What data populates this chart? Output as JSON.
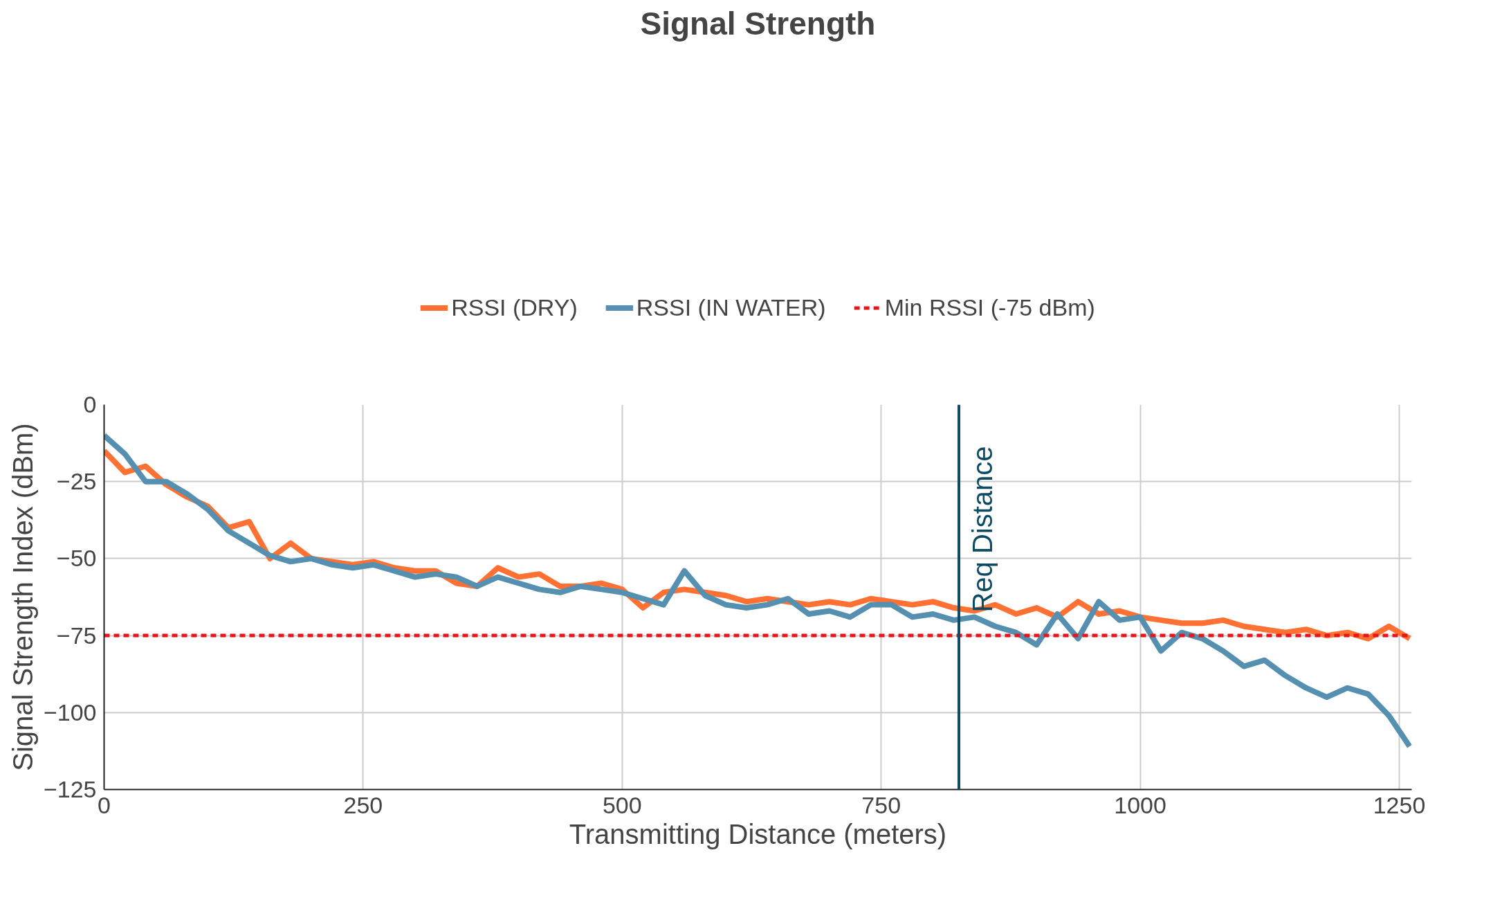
{
  "chart_data": {
    "type": "line",
    "title": "Signal Strength",
    "xlabel": "Transmitting Distance (meters)",
    "ylabel": "Signal Strength Index (dBm)",
    "x": [
      0,
      20,
      40,
      60,
      80,
      100,
      120,
      140,
      160,
      180,
      200,
      220,
      240,
      260,
      280,
      300,
      320,
      340,
      360,
      380,
      400,
      420,
      440,
      460,
      480,
      500,
      520,
      540,
      560,
      580,
      600,
      620,
      640,
      660,
      680,
      700,
      720,
      740,
      760,
      780,
      800,
      820,
      840,
      860,
      880,
      900,
      920,
      940,
      960,
      980,
      1000,
      1020,
      1040,
      1060,
      1080,
      1100,
      1120,
      1140,
      1160,
      1180,
      1200,
      1220,
      1240,
      1260
    ],
    "series": [
      {
        "name": "RSSI (DRY)",
        "color": "#ff7033",
        "values": [
          -15,
          -22,
          -20,
          -26,
          -30,
          -33,
          -40,
          -38,
          -50,
          -45,
          -50,
          -51,
          -52,
          -51,
          -53,
          -54,
          -54,
          -58,
          -59,
          -53,
          -56,
          -55,
          -59,
          -59,
          -58,
          -60,
          -66,
          -61,
          -60,
          -61,
          -62,
          -64,
          -63,
          -64,
          -65,
          -64,
          -65,
          -63,
          -64,
          -65,
          -64,
          -66,
          -67,
          -65,
          -68,
          -66,
          -69,
          -64,
          -68,
          -67,
          -69,
          -70,
          -71,
          -71,
          -70,
          -72,
          -73,
          -74,
          -73,
          -75,
          -74,
          -76,
          -72,
          -76
        ]
      },
      {
        "name": "RSSI (IN WATER)",
        "color": "#5590b0",
        "values": [
          -10,
          -16,
          -25,
          -25,
          -29,
          -34,
          -41,
          -45,
          -49,
          -51,
          -50,
          -52,
          -53,
          -52,
          -54,
          -56,
          -55,
          -56,
          -59,
          -56,
          -58,
          -60,
          -61,
          -59,
          -60,
          -61,
          -63,
          -65,
          -54,
          -62,
          -65,
          -66,
          -65,
          -63,
          -68,
          -67,
          -69,
          -65,
          -65,
          -69,
          -68,
          -70,
          -69,
          -72,
          -74,
          -78,
          -68,
          -76,
          -64,
          -70,
          -69,
          -80,
          -74,
          -76,
          -80,
          -85,
          -83,
          -88,
          -92,
          -95,
          -92,
          -94,
          -101,
          -111
        ]
      }
    ],
    "ref_lines": [
      {
        "axis": "y",
        "value": -75,
        "label": "Min RSSI (-75 dBm)",
        "color": "#e8141c",
        "line_style": "dashed"
      },
      {
        "axis": "x",
        "value": 825,
        "label": "Req Distance",
        "color": "#0d4a63",
        "line_style": "solid"
      }
    ],
    "xlim": [
      0,
      1262
    ],
    "xticks": [
      0,
      250,
      500,
      750,
      1000,
      1250
    ],
    "ylim": [
      -125,
      0
    ],
    "yticks": [
      -125,
      -100,
      -75,
      -50,
      -25,
      0
    ],
    "grid": true,
    "legend": "top",
    "marker": "none",
    "line_style": "solid"
  }
}
